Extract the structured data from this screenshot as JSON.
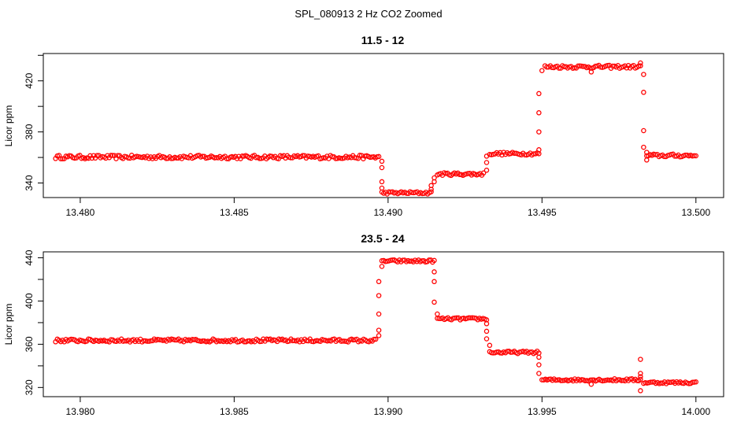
{
  "figure": {
    "title": "SPL_080913  2 Hz CO2 Zoomed"
  },
  "colors": {
    "points": "#ff0000",
    "axes": "#000000"
  },
  "chart_data": [
    {
      "type": "scatter",
      "title": "11.5 - 12",
      "ylabel": "Licor ppm",
      "xlabel": "",
      "xlim": [
        13.4788,
        13.5009
      ],
      "ylim": [
        328.6,
        441.4
      ],
      "xticks": [
        13.48,
        13.485,
        13.49,
        13.495,
        13.5
      ],
      "xtick_labels": [
        "13.480",
        "13.485",
        "13.490",
        "13.495",
        "13.500"
      ],
      "yticks": [
        340,
        360,
        380,
        400,
        420,
        440
      ],
      "ytick_labels": [
        "340",
        "",
        "380",
        "",
        "420",
        ""
      ],
      "grid": false,
      "legend": "none",
      "series": [
        {
          "segments": [
            {
              "x0": 13.4792,
              "x1": 13.4897,
              "y": 360.3,
              "noise": 1.4
            },
            {
              "x0": 13.4898,
              "x1": 13.4914,
              "y": 332.3,
              "noise": 1.0
            },
            {
              "x0": 13.4916,
              "x1": 13.4931,
              "y": 347.0,
              "noise": 1.1
            },
            {
              "x0": 13.4933,
              "x1": 13.4949,
              "y": 363.0,
              "noise": 1.1
            },
            {
              "x0": 13.4951,
              "x1": 13.4982,
              "y": 431.0,
              "noise": 1.2
            },
            {
              "x0": 13.4984,
              "x1": 13.5,
              "y": 361.5,
              "noise": 1.2
            }
          ],
          "points": [
            [
              13.4898,
              357.0
            ],
            [
              13.4898,
              352.0
            ],
            [
              13.4898,
              341.0
            ],
            [
              13.4898,
              336.0
            ],
            [
              13.4914,
              335.0
            ],
            [
              13.4914,
              338.0
            ],
            [
              13.4915,
              341.0
            ],
            [
              13.4915,
              344.0
            ],
            [
              13.4932,
              350.0
            ],
            [
              13.4932,
              356.0
            ],
            [
              13.4932,
              361.0
            ],
            [
              13.4949,
              366.0
            ],
            [
              13.4949,
              380.0
            ],
            [
              13.4949,
              395.0
            ],
            [
              13.4949,
              410.0
            ],
            [
              13.495,
              428.0
            ],
            [
              13.4966,
              427.0
            ],
            [
              13.4982,
              434.0
            ],
            [
              13.4983,
              425.0
            ],
            [
              13.4983,
              411.0
            ],
            [
              13.4983,
              381.0
            ],
            [
              13.4983,
              368.0
            ],
            [
              13.4984,
              364.0
            ],
            [
              13.4984,
              358.0
            ]
          ]
        }
      ]
    },
    {
      "type": "scatter",
      "title": "23.5 - 24",
      "ylabel": "Licor ppm",
      "xlabel": "",
      "xlim": [
        13.9788,
        14.0009
      ],
      "ylim": [
        311.5,
        445.5
      ],
      "xticks": [
        13.98,
        13.985,
        13.99,
        13.995,
        14.0
      ],
      "xtick_labels": [
        "13.980",
        "13.985",
        "13.990",
        "13.995",
        "14.000"
      ],
      "yticks": [
        320,
        340,
        360,
        380,
        400,
        420,
        440
      ],
      "ytick_labels": [
        "320",
        "",
        "360",
        "",
        "400",
        "",
        "440"
      ],
      "grid": false,
      "legend": "none",
      "series": [
        {
          "segments": [
            {
              "x0": 13.9792,
              "x1": 13.9896,
              "y": 363.5,
              "noise": 1.4
            },
            {
              "x0": 13.9898,
              "x1": 13.9915,
              "y": 437.0,
              "noise": 1.1
            },
            {
              "x0": 13.9916,
              "x1": 13.9932,
              "y": 383.5,
              "noise": 1.1
            },
            {
              "x0": 13.9933,
              "x1": 13.9949,
              "y": 352.5,
              "noise": 1.1
            },
            {
              "x0": 13.995,
              "x1": 13.9982,
              "y": 327.0,
              "noise": 1.1
            },
            {
              "x0": 13.9983,
              "x1": 14.0,
              "y": 324.5,
              "noise": 1.0
            }
          ],
          "points": [
            [
              13.9897,
              368.0
            ],
            [
              13.9897,
              373.0
            ],
            [
              13.9897,
              388.0
            ],
            [
              13.9897,
              405.0
            ],
            [
              13.9897,
              418.0
            ],
            [
              13.9898,
              432.0
            ],
            [
              13.9915,
              427.0
            ],
            [
              13.9915,
              418.0
            ],
            [
              13.9915,
              399.0
            ],
            [
              13.9916,
              388.0
            ],
            [
              13.9932,
              379.0
            ],
            [
              13.9932,
              372.0
            ],
            [
              13.9932,
              365.0
            ],
            [
              13.9933,
              359.0
            ],
            [
              13.9949,
              348.0
            ],
            [
              13.9949,
              341.0
            ],
            [
              13.9949,
              333.0
            ],
            [
              13.9966,
              323.0
            ],
            [
              13.9982,
              346.0
            ],
            [
              13.9982,
              333.0
            ],
            [
              13.9982,
              330.0
            ],
            [
              13.9982,
              317.0
            ]
          ]
        }
      ]
    }
  ]
}
